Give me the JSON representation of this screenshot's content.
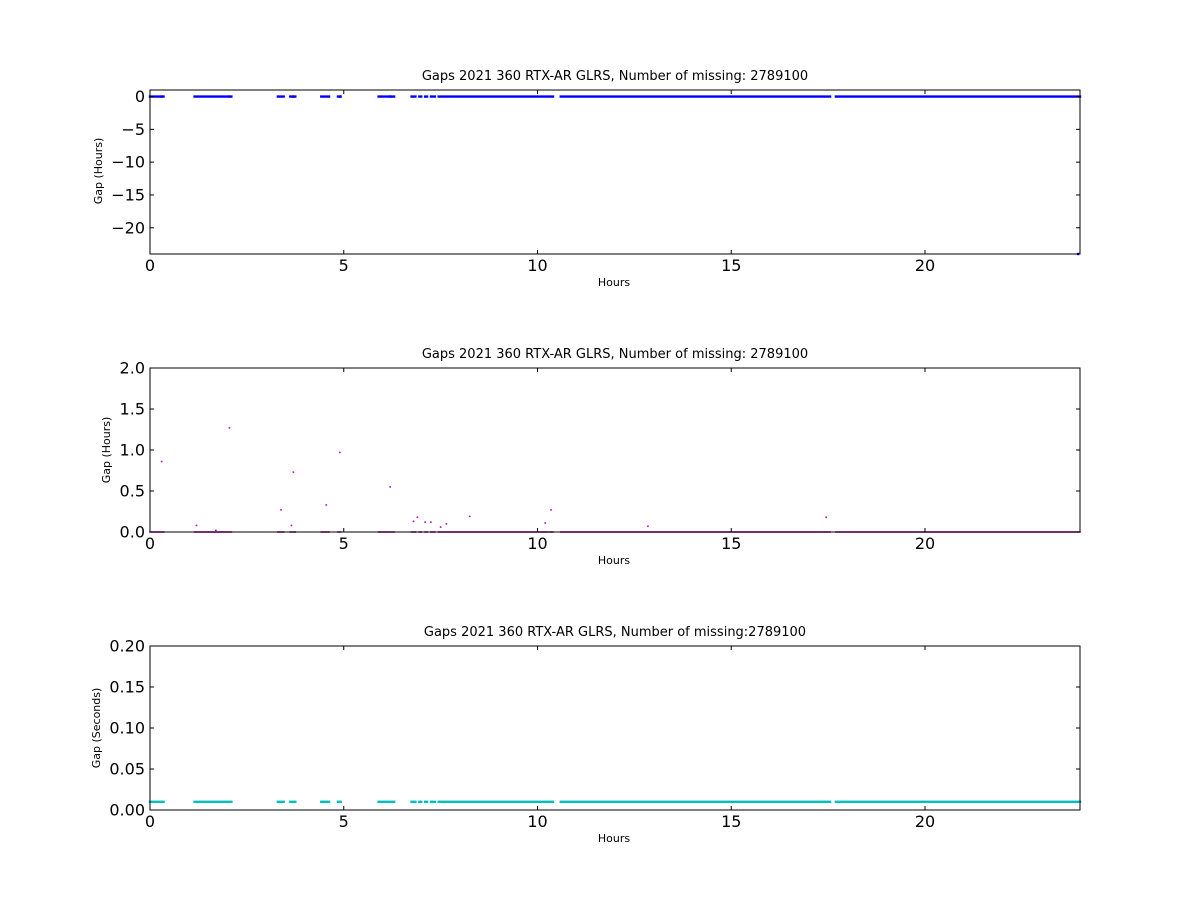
{
  "chart_data": [
    {
      "type": "scatter",
      "title": "Gaps 2021 360 RTX-AR  GLRS, Number of missing: 2789100",
      "xlabel": "Hours",
      "ylabel": "Gap (Hours)",
      "xlim": [
        0,
        24
      ],
      "ylim": [
        -24,
        1
      ],
      "xticks": [
        0,
        5,
        10,
        15,
        20
      ],
      "yticks": [
        0,
        -5,
        -10,
        -15,
        -20
      ],
      "ytick_labels": [
        "0",
        "−5",
        "−10",
        "−15",
        "−20"
      ],
      "color": "#0000ff",
      "marker_size": 2.4,
      "coverage": [
        [
          0.0,
          0.35
        ],
        [
          1.15,
          2.1
        ],
        [
          3.3,
          3.45
        ],
        [
          3.62,
          3.75
        ],
        [
          4.42,
          4.62
        ],
        [
          4.85,
          4.92
        ],
        [
          5.9,
          6.3
        ],
        [
          6.75,
          6.85
        ],
        [
          6.95,
          7.0
        ],
        [
          7.1,
          7.15
        ],
        [
          7.25,
          7.35
        ],
        [
          7.45,
          10.25
        ],
        [
          10.3,
          10.4
        ],
        [
          10.6,
          17.55
        ],
        [
          17.7,
          24.0
        ]
      ],
      "points": [
        [
          0.3,
          0.0
        ],
        [
          2.05,
          0.0
        ],
        [
          3.7,
          0.0
        ],
        [
          4.9,
          0.0
        ],
        [
          6.2,
          0.0
        ],
        [
          23.95,
          -24.0
        ]
      ]
    },
    {
      "type": "scatter",
      "title": "Gaps 2021 360 RTX-AR  GLRS, Number of missing: 2789100",
      "xlabel": "Hours",
      "ylabel": "Gap (Hours)",
      "xlim": [
        0,
        24
      ],
      "ylim": [
        0,
        2.0
      ],
      "xticks": [
        0,
        5,
        10,
        15,
        20
      ],
      "yticks": [
        0.0,
        0.5,
        1.0,
        1.5,
        2.0
      ],
      "ytick_labels": [
        "0.0",
        "0.5",
        "1.0",
        "1.5",
        "2.0"
      ],
      "color": "#bf00bf",
      "marker_size": 1.6,
      "coverage": [
        [
          0.0,
          0.35
        ],
        [
          1.15,
          2.1
        ],
        [
          3.3,
          3.45
        ],
        [
          3.62,
          3.75
        ],
        [
          4.42,
          4.62
        ],
        [
          4.85,
          4.92
        ],
        [
          5.9,
          6.3
        ],
        [
          6.75,
          6.85
        ],
        [
          6.95,
          7.0
        ],
        [
          7.1,
          7.15
        ],
        [
          7.25,
          7.35
        ],
        [
          7.45,
          10.25
        ],
        [
          10.3,
          10.4
        ],
        [
          10.6,
          17.55
        ],
        [
          17.7,
          24.0
        ]
      ],
      "points": [
        [
          0.3,
          0.86
        ],
        [
          1.2,
          0.08
        ],
        [
          1.7,
          0.02
        ],
        [
          2.05,
          1.27
        ],
        [
          3.38,
          0.27
        ],
        [
          3.65,
          0.08
        ],
        [
          3.7,
          0.73
        ],
        [
          4.55,
          0.33
        ],
        [
          4.9,
          0.97
        ],
        [
          6.2,
          0.55
        ],
        [
          6.8,
          0.13
        ],
        [
          6.9,
          0.18
        ],
        [
          7.1,
          0.12
        ],
        [
          7.25,
          0.12
        ],
        [
          7.5,
          0.06
        ],
        [
          7.65,
          0.1
        ],
        [
          8.25,
          0.19
        ],
        [
          10.2,
          0.11
        ],
        [
          10.35,
          0.27
        ],
        [
          12.85,
          0.07
        ],
        [
          17.45,
          0.18
        ]
      ]
    },
    {
      "type": "scatter",
      "title": "Gaps 2021 360 RTX-AR  GLRS, Number of missing:2789100",
      "xlabel": "Hours",
      "ylabel": "Gap (Seconds)",
      "xlim": [
        0,
        24
      ],
      "ylim": [
        0,
        0.2
      ],
      "xticks": [
        0,
        5,
        10,
        15,
        20
      ],
      "yticks": [
        0.0,
        0.05,
        0.1,
        0.15,
        0.2
      ],
      "ytick_labels": [
        "0.00",
        "0.05",
        "0.10",
        "0.15",
        "0.20"
      ],
      "color": "#00bfbf",
      "marker_size": 2.4,
      "baseline_value": 0.01,
      "coverage": [
        [
          0.0,
          0.35
        ],
        [
          1.15,
          2.1
        ],
        [
          3.3,
          3.45
        ],
        [
          3.62,
          3.75
        ],
        [
          4.42,
          4.62
        ],
        [
          4.85,
          4.92
        ],
        [
          5.9,
          6.3
        ],
        [
          6.75,
          6.85
        ],
        [
          6.95,
          7.0
        ],
        [
          7.1,
          7.15
        ],
        [
          7.25,
          7.35
        ],
        [
          7.45,
          10.25
        ],
        [
          10.3,
          10.4
        ],
        [
          10.6,
          17.55
        ],
        [
          17.7,
          24.0
        ]
      ],
      "points": []
    }
  ]
}
